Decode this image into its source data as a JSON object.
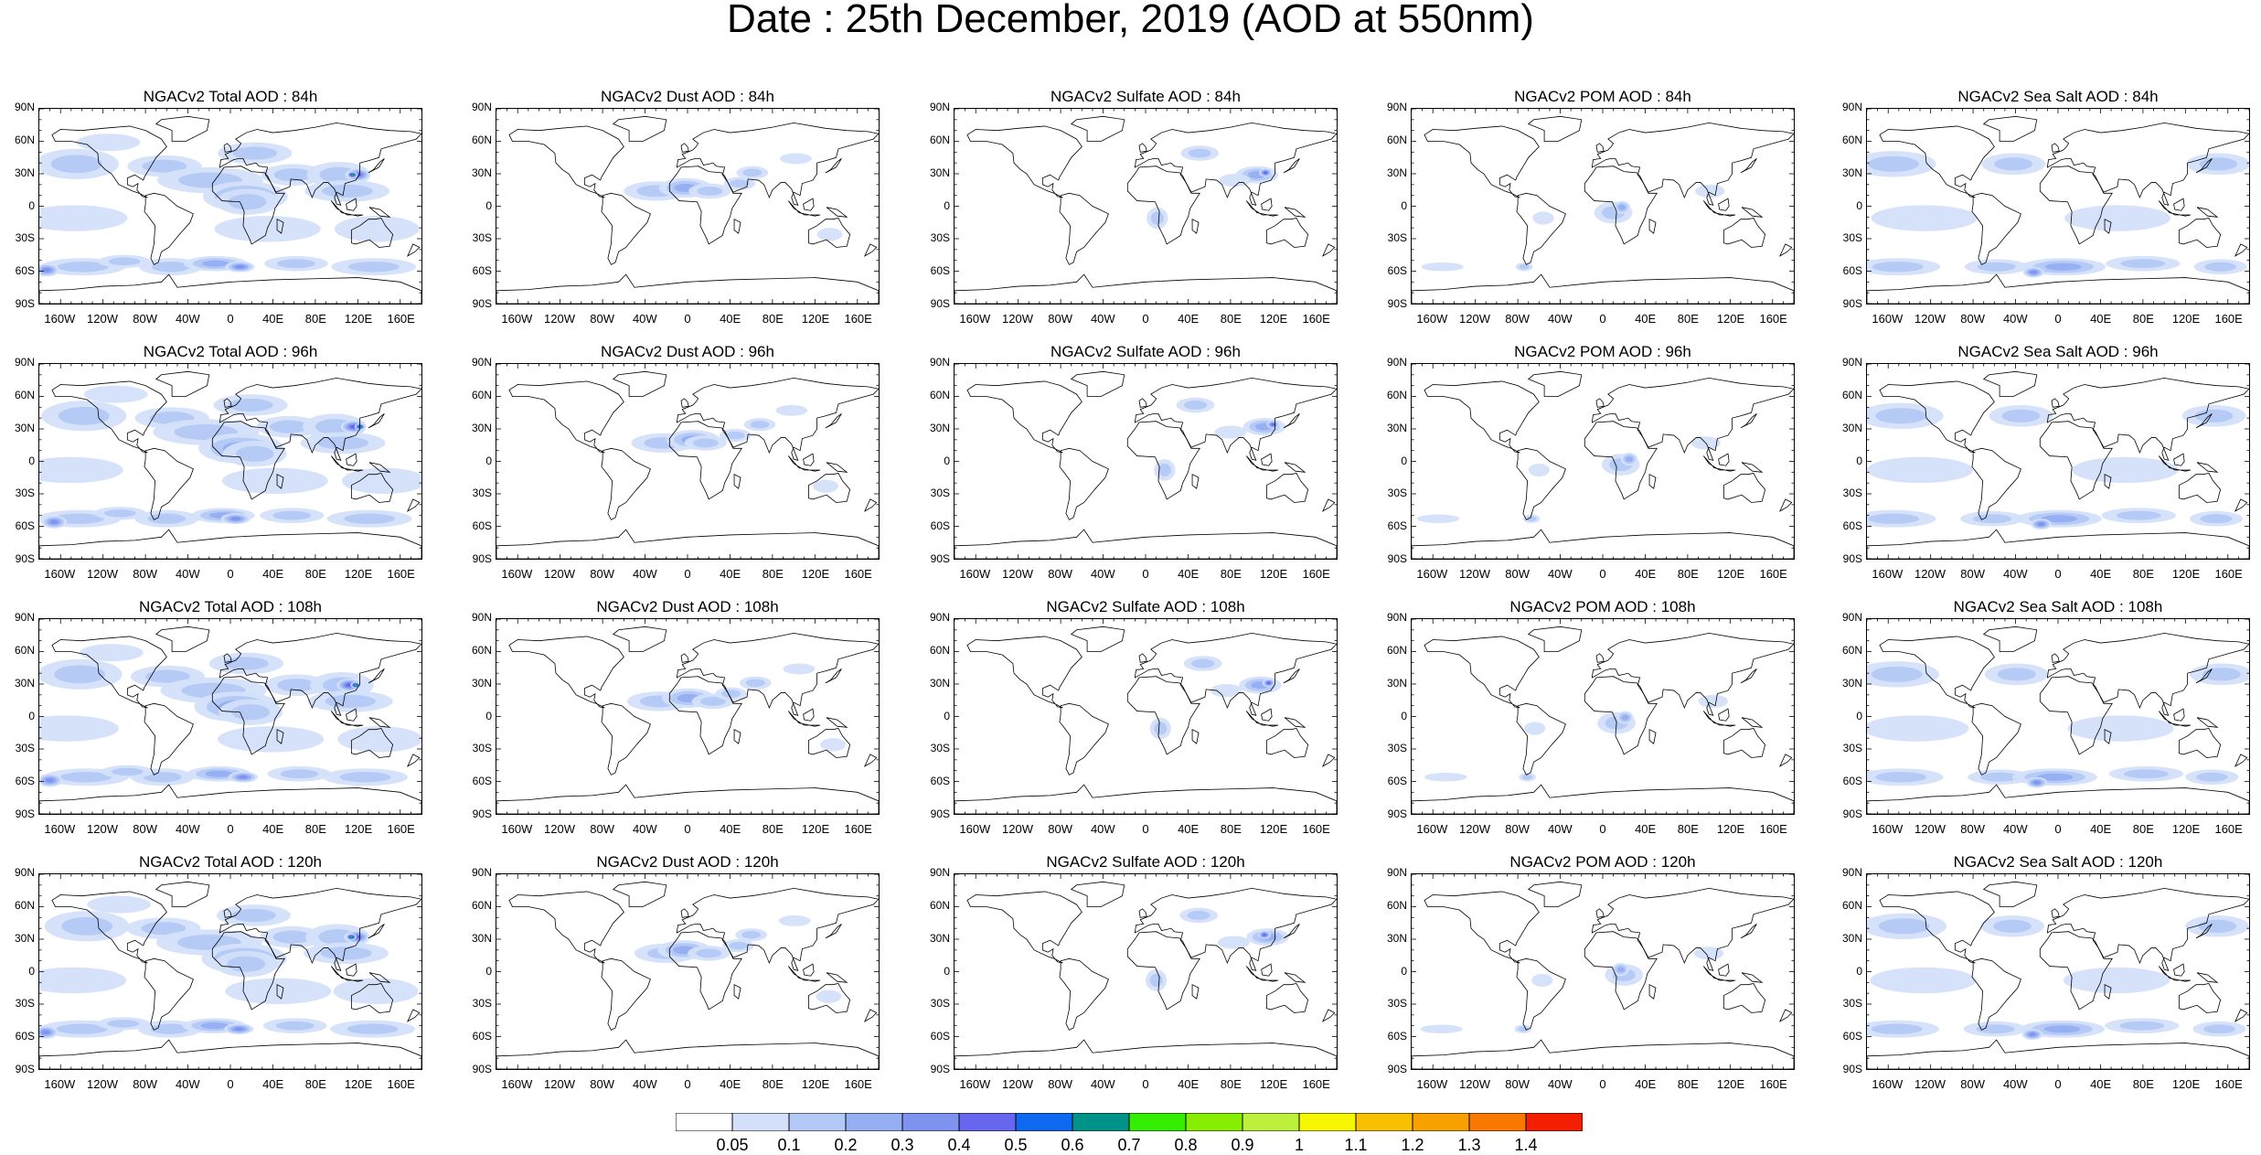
{
  "title": "Date : 25th December, 2019 (AOD at 550nm)",
  "lat_labels": [
    "90N",
    "60N",
    "30N",
    "0",
    "30S",
    "60S",
    "90S"
  ],
  "lon_labels": [
    "160W",
    "120W",
    "80W",
    "40W",
    "0",
    "40E",
    "80E",
    "120E",
    "160E"
  ],
  "panels": [
    [
      {
        "title": "NGACv2 Total AOD : 84h",
        "species": "total"
      },
      {
        "title": "NGACv2 Dust AOD : 84h",
        "species": "dust"
      },
      {
        "title": "NGACv2 Sulfate AOD : 84h",
        "species": "sulfate"
      },
      {
        "title": "NGACv2 POM AOD : 84h",
        "species": "pom"
      },
      {
        "title": "NGACv2 Sea Salt AOD : 84h",
        "species": "seasalt"
      }
    ],
    [
      {
        "title": "NGACv2 Total AOD : 96h",
        "species": "total"
      },
      {
        "title": "NGACv2 Dust AOD : 96h",
        "species": "dust"
      },
      {
        "title": "NGACv2 Sulfate AOD : 96h",
        "species": "sulfate"
      },
      {
        "title": "NGACv2 POM AOD : 96h",
        "species": "pom"
      },
      {
        "title": "NGACv2 Sea Salt AOD : 96h",
        "species": "seasalt"
      }
    ],
    [
      {
        "title": "NGACv2 Total AOD : 108h",
        "species": "total"
      },
      {
        "title": "NGACv2 Dust AOD : 108h",
        "species": "dust"
      },
      {
        "title": "NGACv2 Sulfate AOD : 108h",
        "species": "sulfate"
      },
      {
        "title": "NGACv2 POM AOD : 108h",
        "species": "pom"
      },
      {
        "title": "NGACv2 Sea Salt AOD : 108h",
        "species": "seasalt"
      }
    ],
    [
      {
        "title": "NGACv2 Total AOD : 120h",
        "species": "total"
      },
      {
        "title": "NGACv2 Dust AOD : 120h",
        "species": "dust"
      },
      {
        "title": "NGACv2 Sulfate AOD : 120h",
        "species": "sulfate"
      },
      {
        "title": "NGACv2 POM AOD : 120h",
        "species": "pom"
      },
      {
        "title": "NGACv2 Sea Salt  AOD : 120h",
        "species": "seasalt"
      }
    ]
  ],
  "colorbar": {
    "labels": [
      "0.05",
      "0.1",
      "0.2",
      "0.3",
      "0.4",
      "0.5",
      "0.6",
      "0.7",
      "0.8",
      "0.9",
      "1",
      "1.1",
      "1.2",
      "1.3",
      "1.4"
    ],
    "colors": [
      "#ffffff",
      "#d4e0fa",
      "#b4c8f6",
      "#96aef2",
      "#7e92ef",
      "#6666ee",
      "#0f69f0",
      "#00938a",
      "#33ee00",
      "#88ee00",
      "#bdf03c",
      "#f6f600",
      "#f8c000",
      "#f8a000",
      "#f87800",
      "#f41f00"
    ]
  }
}
